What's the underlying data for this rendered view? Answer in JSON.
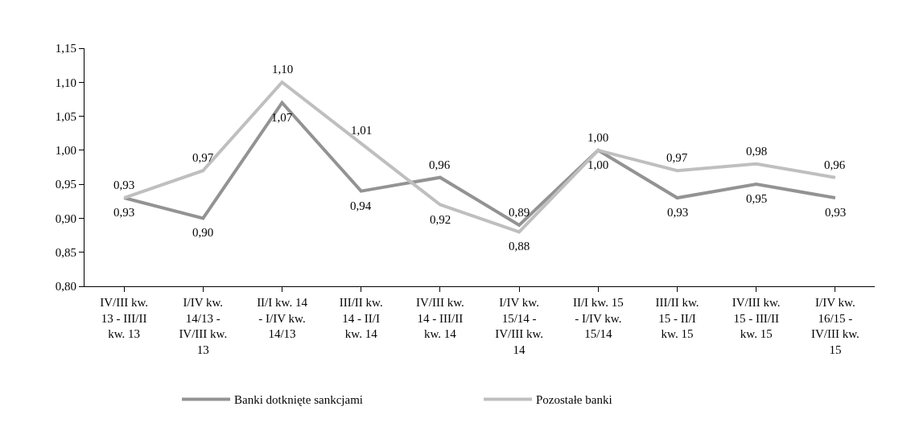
{
  "chart_data": {
    "type": "line",
    "categories": [
      "IV/III kw. 13 - III/II kw. 13",
      "I/IV kw. 14/13 - IV/III kw. 13",
      "II/I kw. 14 - I/IV kw. 14/13",
      "III/II kw. 14 - II/I kw. 14",
      "IV/III kw. 14 - III/II kw. 14",
      "I/IV kw. 15/14 - IV/III kw. 14",
      "II/I kw. 15 - I/IV kw. 15/14",
      "III/II kw. 15 - II/I kw. 15",
      "IV/III kw. 15 - III/II kw. 15",
      "I/IV kw. 16/15 - IV/III kw. 15"
    ],
    "series": [
      {
        "name": "Banki dotknięte sankcjami",
        "color": "#939393",
        "values": [
          0.93,
          0.9,
          1.07,
          0.94,
          0.96,
          0.89,
          1.0,
          0.93,
          0.95,
          0.93
        ],
        "value_labels": [
          "0,93",
          "0,90",
          "1,07",
          "0,94",
          "0,96",
          "0,89",
          "1,00",
          "0,93",
          "0,95",
          "0,93"
        ]
      },
      {
        "name": "Pozostałe banki",
        "color": "#bfbfbf",
        "values": [
          0.93,
          0.97,
          1.1,
          1.01,
          0.92,
          0.88,
          1.0,
          0.97,
          0.98,
          0.96
        ],
        "value_labels": [
          "0,93",
          "0,97",
          "1,10",
          "1,01",
          "0,92",
          "0,88",
          "1,00",
          "0,97",
          "0,98",
          "0,96"
        ]
      }
    ],
    "ylim": [
      0.8,
      1.15
    ],
    "yticks": [
      {
        "value": 0.8,
        "label": "0,80"
      },
      {
        "value": 0.85,
        "label": "0,85"
      },
      {
        "value": 0.9,
        "label": "0,90"
      },
      {
        "value": 0.95,
        "label": "0,95"
      },
      {
        "value": 1.0,
        "label": "1,00"
      },
      {
        "value": 1.05,
        "label": "1,05"
      },
      {
        "value": 1.1,
        "label": "1,10"
      },
      {
        "value": 1.15,
        "label": "1,15"
      }
    ],
    "grid": false,
    "legend": "bottom",
    "marker": "none",
    "line_style": "solid"
  }
}
